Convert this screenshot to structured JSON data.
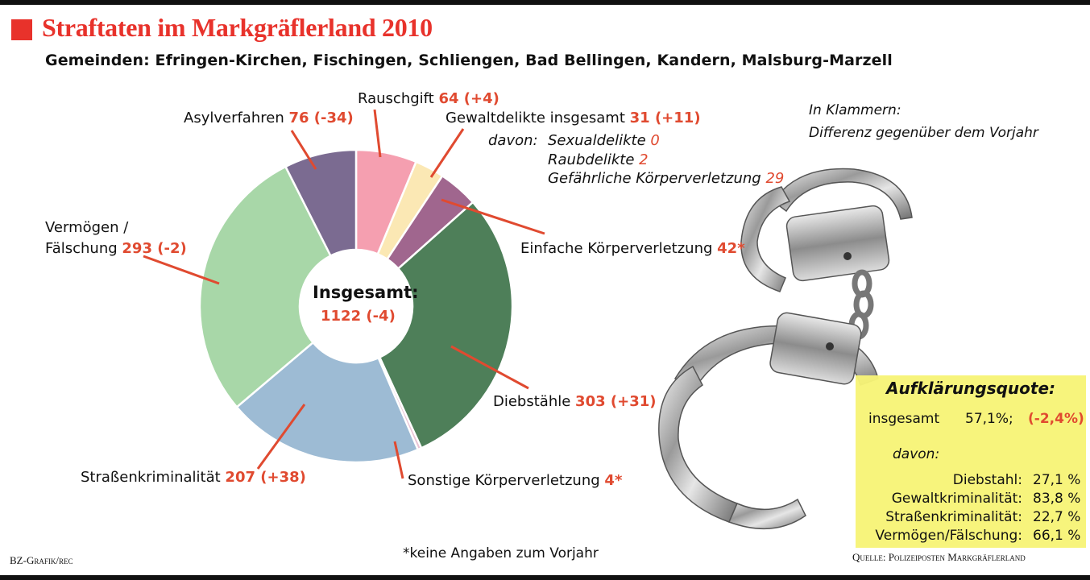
{
  "colors": {
    "accent": "#e8322b",
    "label_red": "#e04a30",
    "box_yellow": "#f7f477"
  },
  "header": {
    "title": "Straftaten im Markgräflerland 2010",
    "subtitle": "Gemeinden: Efringen-Kirchen, Fischingen, Schliengen, Bad Bellingen, Kandern, Malsburg-Marzell"
  },
  "chart_data": {
    "type": "pie",
    "center_label": "Insgesamt:",
    "center_value": "1122 (-4)",
    "slices": [
      {
        "name": "Rauschgift",
        "value": 64,
        "change": "(+4)",
        "color": "#f59fb0"
      },
      {
        "name": "Gewaltdelikte insgesamt",
        "value": 31,
        "change": "(+11)",
        "color": "#fbe8b4"
      },
      {
        "name": "Einfache Körperverletzung",
        "value": 42,
        "change": "*",
        "color": "#a0668e"
      },
      {
        "name": "Diebstähle",
        "value": 303,
        "change": "(+31)",
        "color": "#4e7f59"
      },
      {
        "name": "Sonstige Körperverletzung",
        "value": 4,
        "change": "*",
        "color": "#e9c3d4"
      },
      {
        "name": "Straßenkriminalität",
        "value": 207,
        "change": "(+38)",
        "color": "#9dbbd4"
      },
      {
        "name": "Vermögen / Fälschung",
        "value": 293,
        "change": "(-2)",
        "color": "#a8d7a8"
      },
      {
        "name": "Asylverfahren",
        "value": 76,
        "change": "(-34)",
        "color": "#7b6b91"
      }
    ],
    "sub_items_prefix": "davon:",
    "sub_items": [
      {
        "name": "Sexualdelikte",
        "value": "0"
      },
      {
        "name": "Raubdelikte",
        "value": "2"
      },
      {
        "name": "Gefährliche Körperverletzung",
        "value": "29"
      }
    ]
  },
  "labels": {
    "rauschgift": {
      "name": "Rauschgift",
      "value": "64 (+4)"
    },
    "gewalt": {
      "name": "Gewaltdelikte insgesamt",
      "value": "31 (+11)"
    },
    "asyl": {
      "name": "Asylverfahren",
      "value": "76 (-34)"
    },
    "vermoegen": {
      "name1": "Vermögen /",
      "name2": "Fälschung",
      "value": "293 (-2)"
    },
    "einfache": {
      "name": "Einfache Körperverletzung",
      "value": "42*"
    },
    "diebstaehle": {
      "name": "Diebstähle",
      "value": "303 (+31)"
    },
    "strasse": {
      "name": "Straßenkriminalität",
      "value": "207 (+38)"
    },
    "sonstige": {
      "name": "Sonstige Körperverletzung",
      "value": "4*"
    }
  },
  "note": {
    "line1": "In Klammern:",
    "line2": "Differenz gegenüber dem Vorjahr"
  },
  "quote": {
    "title": "Aufklärungsquote:",
    "total_label": "insgesamt",
    "total_value": "57,1%;",
    "total_change": "(-2,4%)",
    "davon": "davon:",
    "rows": [
      {
        "label": "Diebstahl:",
        "value": "27,1 %"
      },
      {
        "label": "Gewaltkriminalität:",
        "value": "83,8 %"
      },
      {
        "label": "Straßenkriminalität:",
        "value": "22,7 %"
      },
      {
        "label": "Vermögen/Fälschung:",
        "value": "66,1 %"
      }
    ]
  },
  "footer": {
    "credit": "BZ-Grafik/rec",
    "footnote": "*keine Angaben zum Vorjahr",
    "source": "Quelle: Polizeiposten Markgräflerland"
  }
}
